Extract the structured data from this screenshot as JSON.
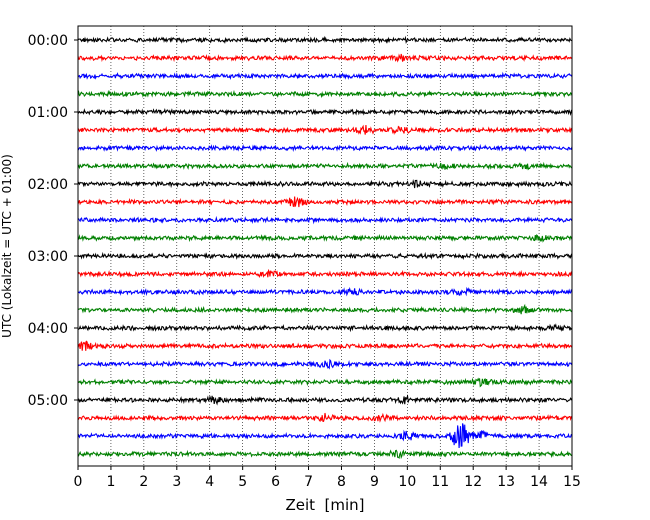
{
  "chart_data": {
    "type": "line",
    "title": "",
    "xlabel": "Zeit  [min]",
    "ylabel": "UTC (Lokalzeit = UTC + 01:00)",
    "xlim": [
      0,
      15
    ],
    "x_ticks": [
      "0",
      "1",
      "2",
      "3",
      "4",
      "5",
      "6",
      "7",
      "8",
      "9",
      "10",
      "11",
      "12",
      "13",
      "14",
      "15"
    ],
    "y_ticks": [
      "00:00",
      "01:00",
      "02:00",
      "03:00",
      "04:00",
      "05:00"
    ],
    "grid": "vertical-dotted",
    "trace_interval_minutes": 15,
    "trace_colors": [
      "#000000",
      "#ff0000",
      "#0000ff",
      "#008000"
    ],
    "traces": [
      {
        "start": "00:00",
        "events": []
      },
      {
        "start": "00:15",
        "events": [
          {
            "t": 9.8,
            "amp": 0.5
          }
        ]
      },
      {
        "start": "00:30",
        "events": []
      },
      {
        "start": "00:45",
        "events": []
      },
      {
        "start": "01:00",
        "events": []
      },
      {
        "start": "01:15",
        "events": [
          {
            "t": 8.7,
            "amp": 0.7
          },
          {
            "t": 9.8,
            "amp": 0.4
          }
        ]
      },
      {
        "start": "01:30",
        "events": []
      },
      {
        "start": "01:45",
        "events": [
          {
            "t": 11.1,
            "amp": 0.5
          },
          {
            "t": 13.5,
            "amp": 0.4
          }
        ]
      },
      {
        "start": "02:00",
        "events": [
          {
            "t": 10.3,
            "amp": 0.5
          }
        ]
      },
      {
        "start": "02:15",
        "events": [
          {
            "t": 6.6,
            "amp": 0.9
          }
        ]
      },
      {
        "start": "02:30",
        "events": []
      },
      {
        "start": "02:45",
        "events": [
          {
            "t": 14.0,
            "amp": 0.4
          }
        ]
      },
      {
        "start": "03:00",
        "events": []
      },
      {
        "start": "03:15",
        "events": [
          {
            "t": 5.8,
            "amp": 0.4
          }
        ]
      },
      {
        "start": "03:30",
        "events": [
          {
            "t": 8.3,
            "amp": 0.6
          },
          {
            "t": 11.7,
            "amp": 0.4
          }
        ]
      },
      {
        "start": "03:45",
        "events": [
          {
            "t": 13.5,
            "amp": 0.5
          }
        ]
      },
      {
        "start": "04:00",
        "events": [
          {
            "t": 14.5,
            "amp": 0.4
          }
        ]
      },
      {
        "start": "04:15",
        "events": [
          {
            "t": 0.2,
            "amp": 0.6
          }
        ]
      },
      {
        "start": "04:30",
        "events": [
          {
            "t": 7.6,
            "amp": 0.6
          }
        ]
      },
      {
        "start": "04:45",
        "events": [
          {
            "t": 12.3,
            "amp": 0.6
          }
        ]
      },
      {
        "start": "05:00",
        "events": [
          {
            "t": 4.1,
            "amp": 0.5
          },
          {
            "t": 9.9,
            "amp": 0.4
          }
        ]
      },
      {
        "start": "05:15",
        "events": [
          {
            "t": 7.5,
            "amp": 0.6
          },
          {
            "t": 9.2,
            "amp": 0.4
          }
        ]
      },
      {
        "start": "05:30",
        "events": [
          {
            "t": 10.0,
            "amp": 0.8
          },
          {
            "t": 11.6,
            "amp": 2.6
          },
          {
            "t": 12.2,
            "amp": 0.8
          }
        ]
      },
      {
        "start": "05:45",
        "events": [
          {
            "t": 9.7,
            "amp": 0.5
          }
        ]
      }
    ]
  }
}
